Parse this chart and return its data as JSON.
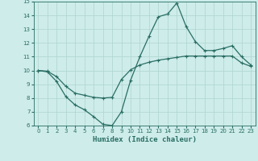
{
  "line1_x": [
    0,
    1,
    2,
    3,
    4,
    5,
    6,
    7,
    8,
    9,
    10,
    11,
    12,
    13,
    14,
    15,
    16,
    17,
    18,
    19,
    20,
    21,
    22,
    23
  ],
  "line1_y": [
    10.0,
    9.9,
    9.2,
    8.1,
    7.5,
    7.15,
    6.65,
    6.1,
    6.0,
    7.0,
    9.3,
    11.0,
    12.5,
    13.9,
    14.1,
    14.9,
    13.2,
    12.1,
    11.45,
    11.45,
    11.6,
    11.8,
    11.0,
    10.4
  ],
  "line2_x": [
    0,
    1,
    2,
    3,
    4,
    5,
    6,
    7,
    8,
    9,
    10,
    11,
    12,
    13,
    14,
    15,
    16,
    17,
    18,
    19,
    20,
    21,
    22,
    23
  ],
  "line2_y": [
    10.0,
    9.95,
    9.55,
    8.85,
    8.35,
    8.2,
    8.05,
    8.0,
    8.05,
    9.35,
    10.05,
    10.4,
    10.6,
    10.75,
    10.85,
    10.95,
    11.05,
    11.05,
    11.05,
    11.05,
    11.05,
    11.05,
    10.55,
    10.3
  ],
  "color": "#2a6e63",
  "background_color": "#cdecea",
  "grid_color": "#aed4d0",
  "xlabel": "Humidex (Indice chaleur)",
  "ylim": [
    6,
    15
  ],
  "xlim": [
    -0.5,
    23.5
  ],
  "yticks": [
    6,
    7,
    8,
    9,
    10,
    11,
    12,
    13,
    14,
    15
  ],
  "xticks": [
    0,
    1,
    2,
    3,
    4,
    5,
    6,
    7,
    8,
    9,
    10,
    11,
    12,
    13,
    14,
    15,
    16,
    17,
    18,
    19,
    20,
    21,
    22,
    23
  ],
  "xtick_labels": [
    "0",
    "1",
    "2",
    "3",
    "4",
    "5",
    "6",
    "7",
    "8",
    "9",
    "10",
    "11",
    "12",
    "13",
    "14",
    "15",
    "16",
    "17",
    "18",
    "19",
    "20",
    "21",
    "22",
    "23"
  ]
}
